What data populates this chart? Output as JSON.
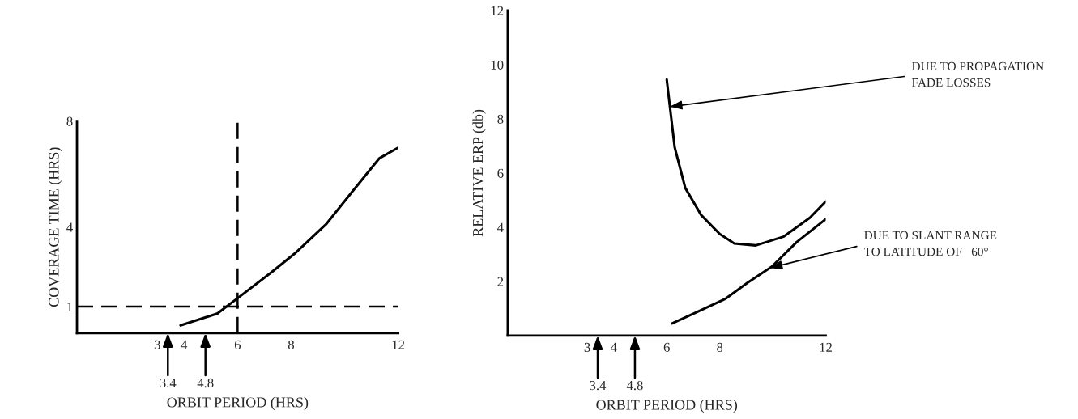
{
  "chart_data": [
    {
      "type": "line",
      "xlabel": "ORBIT PERIOD (HRS)",
      "ylabel": "COVERAGE TIME (HRS)",
      "xlim": [
        0,
        12
      ],
      "ylim": [
        0,
        8
      ],
      "xticks": [
        3,
        4,
        6,
        8,
        12
      ],
      "yticks": [
        1,
        4,
        8
      ],
      "grid": false,
      "legend": false,
      "marker": "none",
      "series": [
        {
          "color": "#000000",
          "line_style": "solid",
          "x": [
            3.87,
            5.25,
            6.08,
            7.27,
            8.13,
            9.3,
            10.3,
            11.3,
            12
          ],
          "values": [
            0.29,
            0.74,
            1.38,
            2.3,
            3.0,
            4.1,
            5.36,
            6.6,
            7.0
          ]
        }
      ],
      "ref_lines": [
        {
          "axis": "y",
          "value": 1,
          "line_style": "dashed",
          "color": "#000000"
        },
        {
          "axis": "x",
          "value": 6,
          "line_style": "dashed",
          "color": "#000000"
        }
      ],
      "annotations": [
        "3.4",
        "4.8"
      ]
    },
    {
      "type": "line",
      "xlabel": "ORBIT PERIOD (HRS)",
      "ylabel": "RELATIVE ERP (db)",
      "xlim": [
        0,
        12
      ],
      "ylim": [
        0,
        12
      ],
      "xticks": [
        3,
        4,
        6,
        8,
        12
      ],
      "yticks": [
        2,
        4,
        6,
        8,
        10,
        12
      ],
      "grid": false,
      "legend": false,
      "marker": "none",
      "series": [
        {
          "color": "#000000",
          "line_style": "solid",
          "x": [
            6.0,
            6.12,
            6.3,
            6.7,
            7.3,
            8.0,
            8.55,
            9.36,
            10.4,
            11.4,
            12
          ],
          "values": [
            9.45,
            8.45,
            6.95,
            5.45,
            4.45,
            3.75,
            3.4,
            3.33,
            3.65,
            4.35,
            4.95
          ]
        },
        {
          "color": "#000000",
          "line_style": "solid",
          "x": [
            6.2,
            7.1,
            8.2,
            9.05,
            9.97,
            10.9,
            12
          ],
          "values": [
            0.45,
            0.85,
            1.35,
            1.95,
            2.55,
            3.45,
            4.3
          ]
        }
      ],
      "annotations": [
        "3.4",
        "4.8",
        {
          "text": "DUE TO PROPAGATION\nFADE LOSSES",
          "x": 6.12,
          "y": 8.45
        },
        {
          "text": "DUE TO SLANT RANGE\nTO LATITUDE OF   60°",
          "x": 9.9,
          "y": 2.5
        }
      ]
    }
  ]
}
